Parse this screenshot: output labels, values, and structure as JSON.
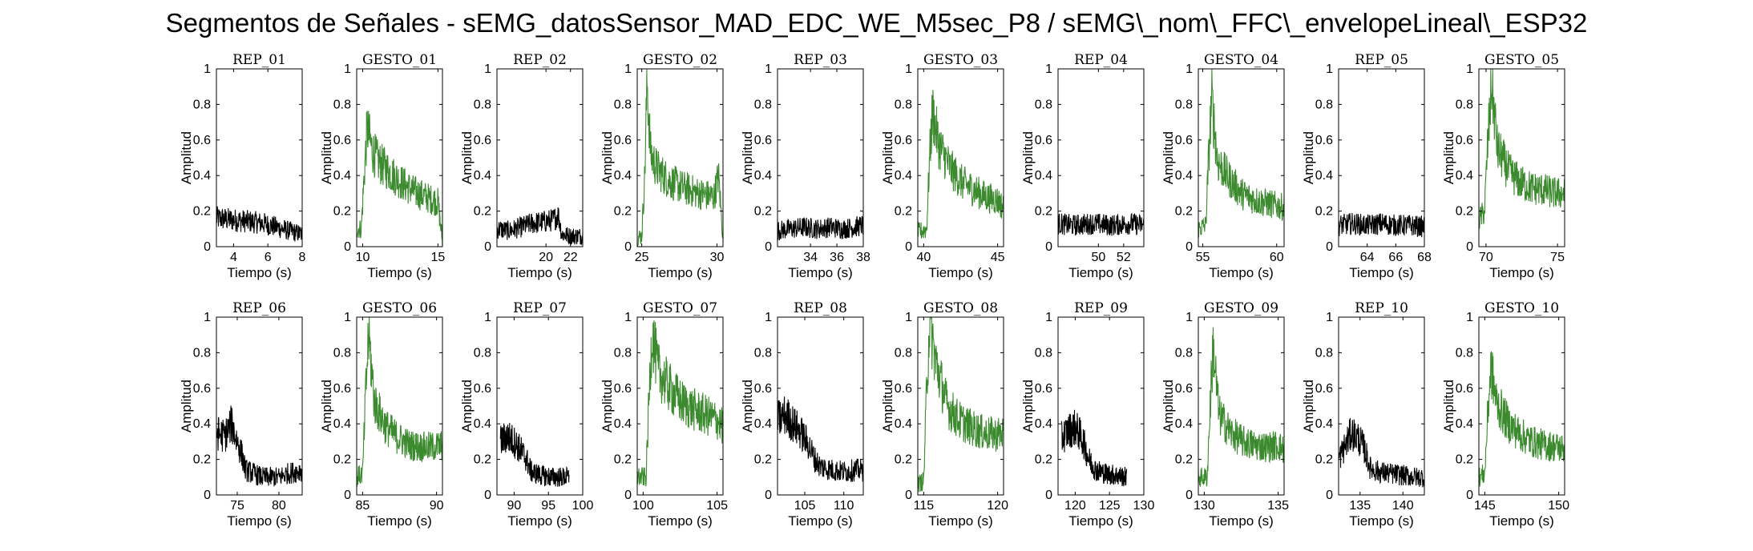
{
  "figure": {
    "title": "Segmentos de Señales - sEMG_datosSensor_MAD_EDC_WE_M5sec_P8 / sEMG\\_nom\\_FFC\\_envelopeLineal\\_ESP32"
  },
  "colors": {
    "rep": "#000000",
    "gesto": "#3b8a2e",
    "axis": "#000000"
  },
  "chart_data": [
    {
      "type": "line",
      "title": "REP_01",
      "xlabel": "Tiempo (s)",
      "ylabel": "Amplitud",
      "xlim": [
        3,
        8
      ],
      "ylim": [
        0,
        1
      ],
      "xticks": [
        4,
        6,
        8
      ],
      "yticks": [
        0,
        0.2,
        0.4,
        0.6,
        0.8,
        1
      ],
      "series": [
        {
          "color": "#000000",
          "x": [
            3,
            4,
            5,
            5.8,
            6.5,
            7.2,
            8
          ],
          "y": [
            0.16,
            0.15,
            0.14,
            0.13,
            0.11,
            0.09,
            0.07
          ]
        }
      ]
    },
    {
      "type": "line",
      "title": "GESTO_01",
      "xlabel": "Tiempo (s)",
      "ylabel": "Amplitud",
      "xlim": [
        9.6,
        15.3
      ],
      "ylim": [
        0,
        1
      ],
      "xticks": [
        10,
        15
      ],
      "yticks": [
        0,
        0.2,
        0.4,
        0.6,
        0.8,
        1
      ],
      "series": [
        {
          "color": "#3b8a2e",
          "x": [
            9.6,
            9.9,
            10.1,
            10.3,
            10.6,
            11,
            11.8,
            12.6,
            13.4,
            14.2,
            15,
            15.3
          ],
          "y": [
            0.1,
            0.1,
            0.4,
            0.67,
            0.55,
            0.48,
            0.42,
            0.36,
            0.31,
            0.28,
            0.25,
            0.03
          ]
        }
      ]
    },
    {
      "type": "line",
      "title": "REP_02",
      "xlabel": "Tiempo (s)",
      "ylabel": "Amplitud",
      "xlim": [
        16,
        23
      ],
      "ylim": [
        0,
        1
      ],
      "xticks": [
        20,
        22
      ],
      "yticks": [
        0,
        0.2,
        0.4,
        0.6,
        0.8,
        1
      ],
      "series": [
        {
          "color": "#000000",
          "x": [
            16,
            17,
            18,
            18.8,
            19.8,
            20.6,
            21,
            21.3,
            22,
            23
          ],
          "y": [
            0.1,
            0.09,
            0.11,
            0.13,
            0.14,
            0.15,
            0.18,
            0.07,
            0.06,
            0.06
          ]
        }
      ]
    },
    {
      "type": "line",
      "title": "GESTO_02",
      "xlabel": "Tiempo (s)",
      "ylabel": "Amplitud",
      "xlim": [
        24.7,
        30.4
      ],
      "ylim": [
        0,
        1
      ],
      "xticks": [
        25,
        30
      ],
      "yticks": [
        0,
        0.2,
        0.4,
        0.6,
        0.8,
        1
      ],
      "series": [
        {
          "color": "#3b8a2e",
          "x": [
            24.7,
            25,
            25.2,
            25.35,
            25.6,
            26,
            26.8,
            27.8,
            28.8,
            29.8,
            30.1,
            30.4
          ],
          "y": [
            0.05,
            0.06,
            0.4,
            0.93,
            0.52,
            0.44,
            0.37,
            0.33,
            0.3,
            0.28,
            0.4,
            0.05
          ]
        }
      ]
    },
    {
      "type": "line",
      "title": "REP_03",
      "xlabel": "Tiempo (s)",
      "ylabel": "Amplitud",
      "xlim": [
        31.5,
        38
      ],
      "ylim": [
        0,
        1
      ],
      "xticks": [
        34,
        36,
        38
      ],
      "yticks": [
        0,
        0.2,
        0.4,
        0.6,
        0.8,
        1
      ],
      "series": [
        {
          "color": "#000000",
          "x": [
            31.5,
            32.5,
            33.5,
            34.5,
            35.5,
            36.5,
            37.3,
            38
          ],
          "y": [
            0.09,
            0.1,
            0.11,
            0.1,
            0.11,
            0.1,
            0.11,
            0.12
          ]
        }
      ]
    },
    {
      "type": "line",
      "title": "GESTO_03",
      "xlabel": "Tiempo (s)",
      "ylabel": "Amplitud",
      "xlim": [
        39.6,
        45.4
      ],
      "ylim": [
        0,
        1
      ],
      "xticks": [
        40,
        45
      ],
      "yticks": [
        0,
        0.2,
        0.4,
        0.6,
        0.8,
        1
      ],
      "series": [
        {
          "color": "#3b8a2e",
          "x": [
            39.6,
            40.2,
            40.4,
            40.6,
            41,
            41.8,
            42.6,
            43.4,
            44.2,
            45,
            45.4
          ],
          "y": [
            0.08,
            0.1,
            0.5,
            0.76,
            0.58,
            0.44,
            0.36,
            0.32,
            0.28,
            0.26,
            0.22
          ]
        }
      ]
    },
    {
      "type": "line",
      "title": "REP_04",
      "xlabel": "Tiempo (s)",
      "ylabel": "Amplitud",
      "xlim": [
        46.8,
        53.6
      ],
      "ylim": [
        0,
        1
      ],
      "xticks": [
        50,
        52
      ],
      "yticks": [
        0,
        0.2,
        0.4,
        0.6,
        0.8,
        1
      ],
      "series": [
        {
          "color": "#000000",
          "x": [
            46.8,
            48,
            49.5,
            51,
            52.5,
            53.6
          ],
          "y": [
            0.13,
            0.12,
            0.13,
            0.12,
            0.13,
            0.12
          ]
        }
      ]
    },
    {
      "type": "line",
      "title": "GESTO_04",
      "xlabel": "Tiempo (s)",
      "ylabel": "Amplitud",
      "xlim": [
        54.7,
        60.5
      ],
      "ylim": [
        0,
        1
      ],
      "xticks": [
        55,
        60
      ],
      "yticks": [
        0,
        0.2,
        0.4,
        0.6,
        0.8,
        1
      ],
      "series": [
        {
          "color": "#3b8a2e",
          "x": [
            54.7,
            55.2,
            55.4,
            55.6,
            56,
            56.8,
            57.6,
            58.6,
            59.6,
            60.5
          ],
          "y": [
            0.1,
            0.12,
            0.5,
            0.84,
            0.48,
            0.38,
            0.3,
            0.26,
            0.24,
            0.22
          ]
        }
      ]
    },
    {
      "type": "line",
      "title": "REP_05",
      "xlabel": "Tiempo (s)",
      "ylabel": "Amplitud",
      "xlim": [
        62,
        68
      ],
      "ylim": [
        0,
        1
      ],
      "xticks": [
        64,
        66,
        68
      ],
      "yticks": [
        0,
        0.2,
        0.4,
        0.6,
        0.8,
        1
      ],
      "series": [
        {
          "color": "#000000",
          "x": [
            62,
            63,
            64,
            65,
            66,
            67,
            68
          ],
          "y": [
            0.12,
            0.13,
            0.12,
            0.13,
            0.12,
            0.12,
            0.11
          ]
        }
      ]
    },
    {
      "type": "line",
      "title": "GESTO_05",
      "xlabel": "Tiempo (s)",
      "ylabel": "Amplitud",
      "xlim": [
        69.5,
        75.5
      ],
      "ylim": [
        0,
        1
      ],
      "xticks": [
        70,
        75
      ],
      "yticks": [
        0,
        0.2,
        0.4,
        0.6,
        0.8,
        1
      ],
      "series": [
        {
          "color": "#3b8a2e",
          "x": [
            69.5,
            69.9,
            70.1,
            70.4,
            70.8,
            71.6,
            72.4,
            73.2,
            74,
            74.8,
            75.5
          ],
          "y": [
            0.15,
            0.2,
            0.55,
            0.92,
            0.55,
            0.42,
            0.36,
            0.33,
            0.32,
            0.3,
            0.3
          ]
        }
      ]
    },
    {
      "type": "line",
      "title": "REP_06",
      "xlabel": "Tiempo (s)",
      "ylabel": "Amplitud",
      "xlim": [
        72.5,
        82.8
      ],
      "ylim": [
        0,
        1
      ],
      "xticks": [
        75,
        80
      ],
      "yticks": [
        0,
        0.2,
        0.4,
        0.6,
        0.8,
        1
      ],
      "series": [
        {
          "color": "#000000",
          "x": [
            72.5,
            73.5,
            74.3,
            75,
            75.6,
            76,
            77,
            78,
            79,
            80,
            81,
            82,
            82.8
          ],
          "y": [
            0.35,
            0.33,
            0.4,
            0.3,
            0.22,
            0.14,
            0.12,
            0.1,
            0.1,
            0.1,
            0.12,
            0.13,
            0.14
          ]
        }
      ]
    },
    {
      "type": "line",
      "title": "GESTO_06",
      "xlabel": "Tiempo (s)",
      "ylabel": "Amplitud",
      "xlim": [
        84.6,
        90.4
      ],
      "ylim": [
        0,
        1
      ],
      "xticks": [
        85,
        90
      ],
      "yticks": [
        0,
        0.2,
        0.4,
        0.6,
        0.8,
        1
      ],
      "series": [
        {
          "color": "#3b8a2e",
          "x": [
            84.6,
            85,
            85.2,
            85.4,
            85.8,
            86.6,
            87.4,
            88.2,
            89,
            89.8,
            90.4
          ],
          "y": [
            0.1,
            0.12,
            0.55,
            0.91,
            0.52,
            0.38,
            0.32,
            0.28,
            0.27,
            0.27,
            0.28
          ]
        }
      ]
    },
    {
      "type": "line",
      "title": "REP_07",
      "xlabel": "Tiempo (s)",
      "ylabel": "Amplitud",
      "xlim": [
        87.5,
        100
      ],
      "ylim": [
        0,
        1
      ],
      "xticks": [
        90,
        95,
        100
      ],
      "yticks": [
        0,
        0.2,
        0.4,
        0.6,
        0.8,
        1
      ],
      "series": [
        {
          "color": "#000000",
          "x": [
            88,
            89,
            90,
            91,
            91.8,
            92.5,
            94,
            95.5,
            97,
            98
          ],
          "y": [
            0.3,
            0.33,
            0.3,
            0.25,
            0.2,
            0.13,
            0.11,
            0.1,
            0.1,
            0.1
          ]
        }
      ]
    },
    {
      "type": "line",
      "title": "GESTO_07",
      "xlabel": "Tiempo (s)",
      "ylabel": "Amplitud",
      "xlim": [
        99.6,
        105.4
      ],
      "ylim": [
        0,
        1
      ],
      "xticks": [
        100,
        105
      ],
      "yticks": [
        0,
        0.2,
        0.4,
        0.6,
        0.8,
        1
      ],
      "series": [
        {
          "color": "#3b8a2e",
          "x": [
            99.6,
            100.2,
            100.4,
            100.6,
            101,
            101.8,
            102.6,
            103.4,
            104.2,
            105,
            105.4
          ],
          "y": [
            0.1,
            0.1,
            0.55,
            0.92,
            0.7,
            0.6,
            0.52,
            0.48,
            0.45,
            0.42,
            0.38
          ]
        }
      ]
    },
    {
      "type": "line",
      "title": "REP_08",
      "xlabel": "Tiempo (s)",
      "ylabel": "Amplitud",
      "xlim": [
        101.5,
        112.5
      ],
      "ylim": [
        0,
        1
      ],
      "xticks": [
        105,
        110
      ],
      "yticks": [
        0,
        0.2,
        0.4,
        0.6,
        0.8,
        1
      ],
      "series": [
        {
          "color": "#000000",
          "x": [
            101.5,
            102.5,
            103.5,
            104.5,
            105.5,
            106.3,
            107,
            108.5,
            110,
            111.5,
            112.5
          ],
          "y": [
            0.42,
            0.45,
            0.4,
            0.35,
            0.28,
            0.2,
            0.16,
            0.14,
            0.13,
            0.14,
            0.14
          ]
        }
      ]
    },
    {
      "type": "line",
      "title": "GESTO_08",
      "xlabel": "Tiempo (s)",
      "ylabel": "Amplitud",
      "xlim": [
        114.6,
        120.4
      ],
      "ylim": [
        0,
        1
      ],
      "xticks": [
        115,
        120
      ],
      "yticks": [
        0,
        0.2,
        0.4,
        0.6,
        0.8,
        1
      ],
      "series": [
        {
          "color": "#3b8a2e",
          "x": [
            114.6,
            115,
            115.2,
            115.4,
            115.8,
            116.6,
            117.4,
            118.2,
            119,
            119.8,
            120.4
          ],
          "y": [
            0.06,
            0.08,
            0.6,
            0.99,
            0.75,
            0.5,
            0.42,
            0.38,
            0.35,
            0.34,
            0.35
          ]
        }
      ]
    },
    {
      "type": "line",
      "title": "REP_09",
      "xlabel": "Tiempo (s)",
      "ylabel": "Amplitud",
      "xlim": [
        117.5,
        130
      ],
      "ylim": [
        0,
        1
      ],
      "xticks": [
        120,
        125,
        130
      ],
      "yticks": [
        0,
        0.2,
        0.4,
        0.6,
        0.8,
        1
      ],
      "series": [
        {
          "color": "#000000",
          "x": [
            118,
            119,
            120,
            121,
            122,
            123,
            124.5,
            126,
            127.5
          ],
          "y": [
            0.32,
            0.36,
            0.38,
            0.32,
            0.2,
            0.14,
            0.12,
            0.11,
            0.1
          ]
        }
      ]
    },
    {
      "type": "line",
      "title": "GESTO_09",
      "xlabel": "Tiempo (s)",
      "ylabel": "Amplitud",
      "xlim": [
        129.6,
        135.4
      ],
      "ylim": [
        0,
        1
      ],
      "xticks": [
        130,
        135
      ],
      "yticks": [
        0,
        0.2,
        0.4,
        0.6,
        0.8,
        1
      ],
      "series": [
        {
          "color": "#3b8a2e",
          "x": [
            129.6,
            130.2,
            130.4,
            130.6,
            131,
            131.8,
            132.6,
            133.4,
            134.2,
            135,
            135.4
          ],
          "y": [
            0.1,
            0.1,
            0.5,
            0.84,
            0.45,
            0.35,
            0.3,
            0.28,
            0.27,
            0.28,
            0.25
          ]
        }
      ]
    },
    {
      "type": "line",
      "title": "REP_10",
      "xlabel": "Tiempo (s)",
      "ylabel": "Amplitud",
      "xlim": [
        132.5,
        142.5
      ],
      "ylim": [
        0,
        1
      ],
      "xticks": [
        135,
        140
      ],
      "yticks": [
        0,
        0.2,
        0.4,
        0.6,
        0.8,
        1
      ],
      "series": [
        {
          "color": "#000000",
          "x": [
            132.5,
            133.3,
            134,
            134.8,
            135.5,
            136.2,
            137.2,
            138.5,
            140,
            141.5,
            142.5
          ],
          "y": [
            0.2,
            0.28,
            0.35,
            0.32,
            0.26,
            0.15,
            0.13,
            0.12,
            0.11,
            0.1,
            0.1
          ]
        }
      ]
    },
    {
      "type": "line",
      "title": "GESTO_10",
      "xlabel": "Tiempo (s)",
      "ylabel": "Amplitud",
      "xlim": [
        144.6,
        150.4
      ],
      "ylim": [
        0,
        1
      ],
      "xticks": [
        145,
        150
      ],
      "yticks": [
        0,
        0.2,
        0.4,
        0.6,
        0.8,
        1
      ],
      "series": [
        {
          "color": "#3b8a2e",
          "x": [
            144.6,
            145,
            145.2,
            145.4,
            145.8,
            146.6,
            147.4,
            148.2,
            149,
            149.8,
            150.4
          ],
          "y": [
            0.1,
            0.12,
            0.45,
            0.72,
            0.52,
            0.4,
            0.34,
            0.3,
            0.28,
            0.27,
            0.26
          ]
        }
      ]
    }
  ]
}
